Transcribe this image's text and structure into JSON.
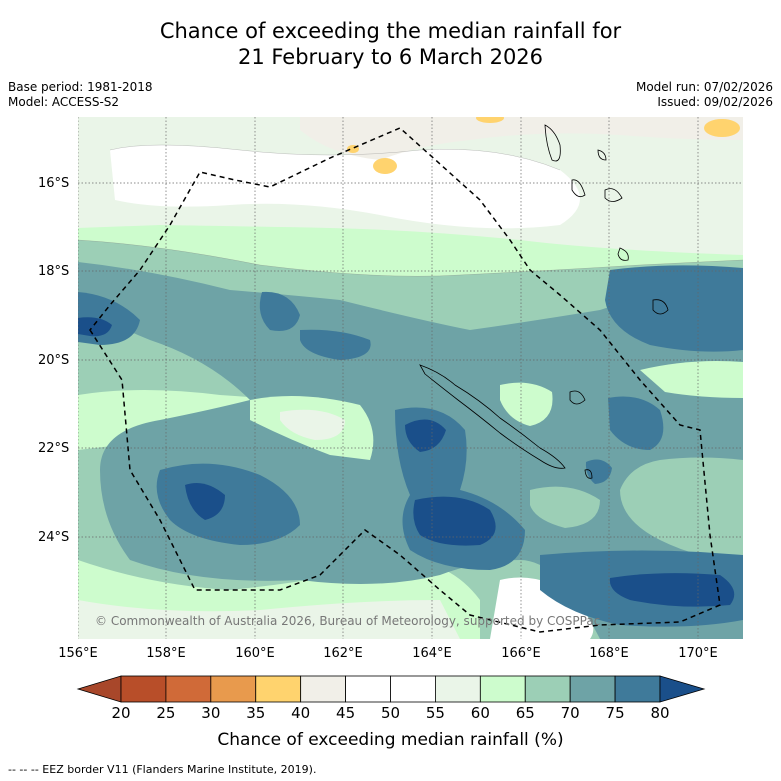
{
  "title": {
    "line1": "Chance of exceeding the median rainfall for",
    "line2": "21 February to 6 March 2026"
  },
  "meta": {
    "base_period": "Base period: 1981-2018",
    "model": "Model: ACCESS-S2",
    "model_run": "Model run: 07/02/2026",
    "issued": "Issued: 09/02/2026"
  },
  "map": {
    "latitude_labels": [
      "16°S",
      "18°S",
      "20°S",
      "22°S",
      "24°S"
    ],
    "longitude_labels": [
      "156°E",
      "158°E",
      "160°E",
      "162°E",
      "164°E",
      "166°E",
      "168°E",
      "170°E"
    ],
    "copyright": "© Commonwealth of Australia 2026, Bureau of Meteorology, supported by COSPPac"
  },
  "colorbar": {
    "labels": [
      "20",
      "25",
      "30",
      "35",
      "40",
      "45",
      "50",
      "55",
      "60",
      "65",
      "70",
      "75",
      "80"
    ],
    "colors": [
      "#a8472a",
      "#b84e29",
      "#d06a38",
      "#e89a4d",
      "#ffd36e",
      "#f1efe8",
      "#ffffff",
      "#ffffff",
      "#eaf5e8",
      "#cdfccd",
      "#9ccfb6",
      "#6ea3a6",
      "#3f7a9a",
      "#1a4f8a"
    ],
    "title": "Chance of exceeding median rainfall (%)"
  },
  "footnote": "--  --  -- EEZ border V11 (Flanders Marine Institute, 2019)."
}
